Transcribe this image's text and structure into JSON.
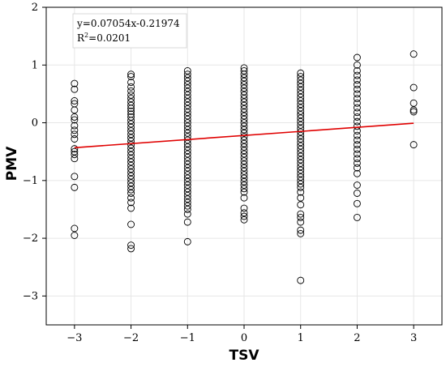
{
  "chart_data": {
    "type": "scatter",
    "xlabel": "TSV",
    "ylabel": "PMV",
    "xlim": [
      -3.5,
      3.5
    ],
    "ylim": [
      -3.5,
      2
    ],
    "xticks": [
      -3,
      -2,
      -1,
      0,
      1,
      2,
      3
    ],
    "yticks": [
      -3,
      -2,
      -1,
      0,
      1,
      2
    ],
    "grid": true,
    "fit": {
      "slope": 0.07054,
      "intercept": -0.21974,
      "x_range": [
        -3,
        3
      ],
      "color": "#e00000"
    },
    "annotation": {
      "equation": "y=0.07054x-0.21974",
      "r2_prefix": "R",
      "r2_sup": "2",
      "r2_value": "=0.0201"
    },
    "points": [
      {
        "x": -3,
        "y": [
          0.68,
          0.58,
          0.38,
          0.33,
          0.22,
          0.1,
          0.05,
          -0.05,
          -0.13,
          -0.2,
          -0.28,
          -0.45,
          -0.5,
          -0.55,
          -0.62,
          -0.93,
          -1.12,
          -1.83,
          -1.95
        ]
      },
      {
        "x": -2,
        "y": [
          0.84,
          0.8,
          0.7,
          0.62,
          0.55,
          0.48,
          0.42,
          0.36,
          0.3,
          0.25,
          0.2,
          0.15,
          0.1,
          0.04,
          -0.02,
          -0.08,
          -0.14,
          -0.2,
          -0.26,
          -0.32,
          -0.38,
          -0.44,
          -0.5,
          -0.56,
          -0.62,
          -0.68,
          -0.74,
          -0.8,
          -0.86,
          -0.92,
          -0.98,
          -1.04,
          -1.1,
          -1.16,
          -1.22,
          -1.3,
          -1.38,
          -1.48,
          -1.76,
          -2.12,
          -2.18
        ]
      },
      {
        "x": -1,
        "y": [
          0.9,
          0.84,
          0.78,
          0.72,
          0.66,
          0.6,
          0.54,
          0.48,
          0.42,
          0.36,
          0.3,
          0.24,
          0.18,
          0.12,
          0.06,
          0,
          -0.06,
          -0.12,
          -0.18,
          -0.24,
          -0.3,
          -0.36,
          -0.42,
          -0.48,
          -0.54,
          -0.6,
          -0.66,
          -0.72,
          -0.78,
          -0.84,
          -0.9,
          -0.96,
          -1.02,
          -1.08,
          -1.14,
          -1.2,
          -1.26,
          -1.32,
          -1.38,
          -1.44,
          -1.5,
          -1.58,
          -1.72,
          -2.06
        ]
      },
      {
        "x": 0,
        "y": [
          0.95,
          0.9,
          0.84,
          0.78,
          0.72,
          0.66,
          0.6,
          0.54,
          0.48,
          0.42,
          0.36,
          0.3,
          0.24,
          0.18,
          0.12,
          0.06,
          0,
          -0.06,
          -0.12,
          -0.18,
          -0.24,
          -0.3,
          -0.36,
          -0.42,
          -0.48,
          -0.54,
          -0.6,
          -0.66,
          -0.72,
          -0.78,
          -0.84,
          -0.9,
          -0.96,
          -1.02,
          -1.08,
          -1.14,
          -1.2,
          -1.3,
          -1.48,
          -1.56,
          -1.62,
          -1.68
        ]
      },
      {
        "x": 1,
        "y": [
          0.86,
          0.8,
          0.74,
          0.68,
          0.62,
          0.56,
          0.5,
          0.44,
          0.38,
          0.32,
          0.26,
          0.2,
          0.14,
          0.08,
          0.02,
          -0.04,
          -0.1,
          -0.16,
          -0.22,
          -0.28,
          -0.34,
          -0.4,
          -0.46,
          -0.52,
          -0.58,
          -0.64,
          -0.7,
          -0.76,
          -0.82,
          -0.88,
          -0.94,
          -1.0,
          -1.06,
          -1.12,
          -1.2,
          -1.3,
          -1.42,
          -1.58,
          -1.64,
          -1.72,
          -1.86,
          -1.92,
          -2.73
        ]
      },
      {
        "x": 2,
        "y": [
          1.13,
          1.0,
          0.9,
          0.82,
          0.74,
          0.66,
          0.58,
          0.5,
          0.42,
          0.34,
          0.26,
          0.18,
          0.1,
          0.02,
          -0.06,
          -0.14,
          -0.22,
          -0.3,
          -0.38,
          -0.46,
          -0.54,
          -0.62,
          -0.7,
          -0.78,
          -0.88,
          -1.08,
          -1.22,
          -1.4,
          -1.64
        ]
      },
      {
        "x": 3,
        "y": [
          1.19,
          0.61,
          0.34,
          0.22,
          0.19,
          -0.38
        ]
      }
    ]
  }
}
